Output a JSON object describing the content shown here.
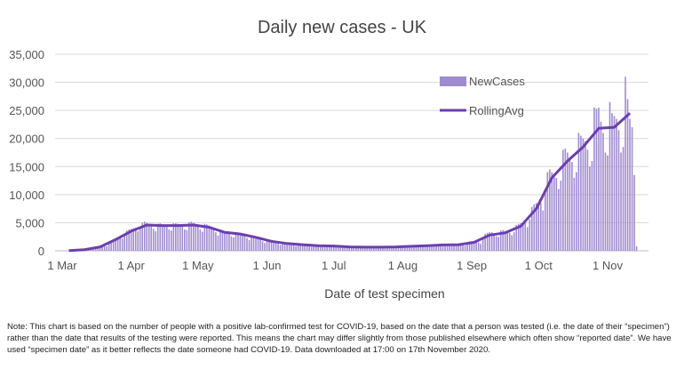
{
  "chart_data": {
    "type": "bar+line",
    "title": "Daily new cases - UK",
    "xlabel": "Date of test specimen",
    "ylabel": "",
    "ylim": [
      0,
      35000
    ],
    "y_ticks": [
      "0",
      "5,000",
      "10,000",
      "15,000",
      "20,000",
      "25,000",
      "30,000",
      "35,000"
    ],
    "y_tick_values": [
      0,
      5000,
      10000,
      15000,
      20000,
      25000,
      30000,
      35000
    ],
    "x_ticks": [
      "1 Mar",
      "1 Apr",
      "1 May",
      "1 Jun",
      "1 Jul",
      "1 Aug",
      "1 Sep",
      "1 Oct",
      "1 Nov"
    ],
    "x_tick_dates": [
      "2020-03-01",
      "2020-04-01",
      "2020-05-01",
      "2020-06-01",
      "2020-07-01",
      "2020-08-01",
      "2020-09-01",
      "2020-10-01",
      "2020-11-01"
    ],
    "grid": "horizontal",
    "legend_position": "top-right",
    "colors": {
      "NewCases": "#a08bd0",
      "RollingAvg": "#6b3fae",
      "grid": "#d9d9d9"
    },
    "series": [
      {
        "name": "NewCases",
        "type": "bar",
        "start_date": "2020-03-01",
        "values": [
          20,
          30,
          40,
          50,
          60,
          70,
          80,
          120,
          180,
          200,
          220,
          250,
          280,
          250,
          450,
          650,
          700,
          750,
          850,
          900,
          800,
          1300,
          1900,
          2100,
          2200,
          2400,
          2500,
          2200,
          2800,
          3600,
          3800,
          3900,
          4000,
          4100,
          3500,
          3900,
          5000,
          5200,
          5000,
          4800,
          4600,
          3900,
          3500,
          4800,
          4900,
          4700,
          4600,
          4500,
          3800,
          3600,
          4900,
          4900,
          4800,
          4700,
          4500,
          3800,
          3700,
          5100,
          5200,
          5000,
          4800,
          4500,
          3800,
          3400,
          4800,
          4700,
          4500,
          4300,
          4000,
          3300,
          2700,
          3700,
          3600,
          3500,
          3300,
          3100,
          2600,
          2400,
          3300,
          3200,
          3100,
          3000,
          2800,
          2300,
          1900,
          2700,
          2600,
          2500,
          2400,
          2200,
          1700,
          1400,
          1900,
          1800,
          1700,
          1650,
          1550,
          1250,
          1050,
          1450,
          1400,
          1350,
          1300,
          1200,
          1000,
          850,
          1200,
          1200,
          1150,
          1100,
          1050,
          850,
          700,
          1000,
          1000,
          950,
          900,
          850,
          700,
          650,
          950,
          950,
          900,
          850,
          800,
          650,
          550,
          800,
          780,
          750,
          700,
          650,
          550,
          500,
          720,
          720,
          680,
          650,
          620,
          500,
          500,
          730,
          730,
          700,
          660,
          620,
          520,
          550,
          800,
          780,
          750,
          720,
          680,
          560,
          620,
          900,
          880,
          850,
          820,
          780,
          640,
          700,
          1000,
          1000,
          950,
          920,
          880,
          720,
          800,
          1200,
          1150,
          1100,
          1080,
          1020,
          850,
          850,
          1250,
          1250,
          1200,
          1150,
          1050,
          900,
          1200,
          1700,
          1700,
          1650,
          1600,
          1500,
          1250,
          2100,
          3000,
          3200,
          3300,
          3300,
          3100,
          2600,
          2500,
          3600,
          3700,
          3500,
          3400,
          3200,
          2800,
          3300,
          4600,
          4800,
          4900,
          5000,
          4900,
          4200,
          5600,
          7800,
          8300,
          8500,
          8700,
          8500,
          7200,
          10500,
          14000,
          14500,
          14000,
          13500,
          13000,
          11000,
          12500,
          18000,
          18200,
          17500,
          16500,
          15800,
          13000,
          14000,
          21000,
          20500,
          20000,
          19500,
          18000,
          15000,
          16000,
          25500,
          25300,
          25500,
          23000,
          21000,
          17500,
          17000,
          26500,
          24500,
          24000,
          23500,
          21500,
          17500,
          18500,
          31000,
          27000,
          23500,
          22000,
          13500,
          800
        ]
      },
      {
        "name": "RollingAvg",
        "type": "line",
        "x": [
          "2020-03-04",
          "2020-03-11",
          "2020-03-18",
          "2020-03-25",
          "2020-04-01",
          "2020-04-08",
          "2020-04-15",
          "2020-04-22",
          "2020-04-29",
          "2020-05-06",
          "2020-05-13",
          "2020-05-20",
          "2020-05-27",
          "2020-06-03",
          "2020-06-10",
          "2020-06-17",
          "2020-06-24",
          "2020-07-01",
          "2020-07-08",
          "2020-07-15",
          "2020-07-22",
          "2020-07-29",
          "2020-08-05",
          "2020-08-12",
          "2020-08-19",
          "2020-08-26",
          "2020-09-02",
          "2020-09-09",
          "2020-09-16",
          "2020-09-23",
          "2020-09-30",
          "2020-10-07",
          "2020-10-14",
          "2020-10-21",
          "2020-10-28",
          "2020-11-04",
          "2020-11-11"
        ],
        "values": [
          50,
          200,
          700,
          2000,
          3500,
          4600,
          4500,
          4500,
          4600,
          4200,
          3300,
          3000,
          2400,
          1700,
          1300,
          1100,
          900,
          850,
          700,
          650,
          650,
          700,
          800,
          900,
          1050,
          1100,
          1500,
          2800,
          3200,
          4400,
          7500,
          13000,
          16000,
          18500,
          21800,
          22000,
          24500
        ]
      }
    ]
  },
  "note": "Note: This chart is based on the number of people with a positive lab-confirmed test for COVID-19, based on the date that a person was tested (i.e. the date of their “specimen”) rather than the date that results of the testing were reported. This means the chart may differ slightly from those published elsewhere which often show “reported date”. We have used “specimen date” as it better reflects the date someone had COVID-19. Data downloaded at 17:00 on 17th November 2020."
}
